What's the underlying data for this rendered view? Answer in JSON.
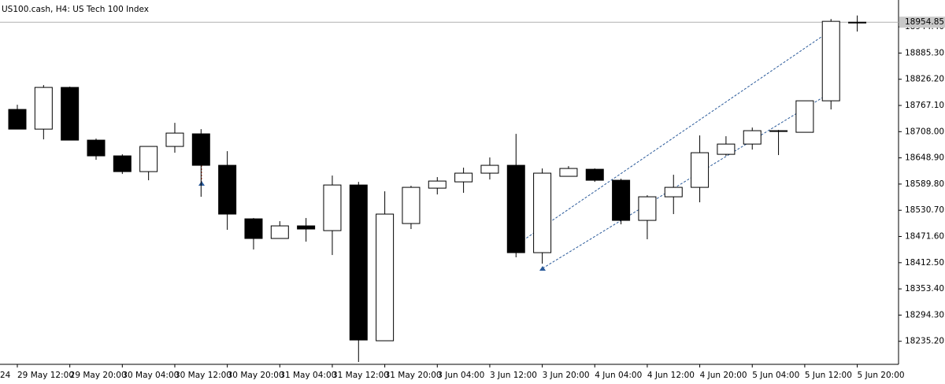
{
  "chart_data": {
    "type": "candlestick",
    "title": "US100.cash, H4:  US Tech 100 Index",
    "x_label_partial": "24",
    "categories": [
      "29 May 12:00",
      null,
      "29 May 20:00",
      null,
      "30 May 04:00",
      null,
      "30 May 12:00",
      null,
      "30 May 20:00",
      null,
      "31 May 04:00",
      null,
      "31 May 12:00",
      null,
      "31 May 20:00",
      null,
      "3 Jun 04:00",
      null,
      "3 Jun 12:00",
      null,
      "3 Jun 20:00",
      null,
      "4 Jun 04:00",
      null,
      "4 Jun 12:00",
      null,
      "4 Jun 20:00",
      null,
      "5 Jun 04:00",
      null,
      "5 Jun 12:00",
      null,
      "5 Jun 20:00"
    ],
    "open": [
      18758.1,
      18713.7,
      18807.8,
      18688.9,
      18653.4,
      18617.9,
      18674.7,
      18703.1,
      18632.1,
      18511.4,
      18467.1,
      18495.5,
      18484.8,
      18587.7,
      18236.4,
      18500.8,
      18580.6,
      18594.8,
      18614.4,
      18632.1,
      18435.1,
      18607.3,
      18623.2,
      18598.4,
      18507.9,
      18561.1,
      18582.4,
      18656.9,
      18680.0,
      18710.2,
      18706.6,
      18777.6,
      18954.85
    ],
    "high": [
      18768.7,
      18813.1,
      18809.5,
      18692.4,
      18656.9,
      18674.7,
      18727.9,
      18713.7,
      18664.0,
      18513.2,
      18506.1,
      18513.2,
      18609.0,
      18594.8,
      18573.5,
      18585.9,
      18605.5,
      18626.8,
      18649.8,
      18703.1,
      18625.0,
      18630.3,
      18625.0,
      18601.9,
      18564.6,
      18610.8,
      18699.5,
      18697.7,
      18717.3,
      18711.9,
      18777.6,
      18962.1,
      18970.0
    ],
    "low": [
      18713.7,
      18690.6,
      18688.9,
      18644.5,
      18612.6,
      18598.4,
      18660.5,
      18561.1,
      18486.6,
      18442.2,
      18467.1,
      18459.9,
      18429.8,
      18188.5,
      18236.4,
      18488.4,
      18566.4,
      18570.0,
      18600.1,
      18424.5,
      18410.3,
      18607.3,
      18594.8,
      18499.0,
      18465.3,
      18522.1,
      18548.7,
      18653.4,
      18667.6,
      18655.2,
      18706.6,
      18758.1,
      18933.8
    ],
    "close": [
      18713.7,
      18807.8,
      18688.9,
      18653.4,
      18617.9,
      18674.7,
      18704.8,
      18632.1,
      18522.1,
      18467.1,
      18495.5,
      18488.4,
      18587.7,
      18238.1,
      18522.1,
      18582.4,
      18596.6,
      18614.4,
      18632.1,
      18435.1,
      18614.4,
      18625.0,
      18598.4,
      18507.9,
      18561.1,
      18582.4,
      18660.5,
      18680.0,
      18710.2,
      18708.4,
      18777.6,
      18956.8,
      18954.85
    ],
    "up_color": "#ffffff",
    "down_color": "#000000",
    "line_color": "#000000",
    "last_price": 18954.85,
    "ylim": [
      18185,
      18973
    ],
    "yticks": [
      {
        "value": 18944.4,
        "label": "18944.40"
      },
      {
        "value": 18885.3,
        "label": "18885.30"
      },
      {
        "value": 18826.2,
        "label": "18826.20"
      },
      {
        "value": 18767.1,
        "label": "18767.10"
      },
      {
        "value": 18708.0,
        "label": "18708.00"
      },
      {
        "value": 18648.9,
        "label": "18648.90"
      },
      {
        "value": 18589.8,
        "label": "18589.80"
      },
      {
        "value": 18530.7,
        "label": "18530.70"
      },
      {
        "value": 18471.6,
        "label": "18471.60"
      },
      {
        "value": 18412.5,
        "label": "18412.50"
      },
      {
        "value": 18353.4,
        "label": "18353.40"
      },
      {
        "value": 18294.3,
        "label": "18294.30"
      },
      {
        "value": 18235.2,
        "label": "18235.20"
      }
    ],
    "grid": false
  }
}
